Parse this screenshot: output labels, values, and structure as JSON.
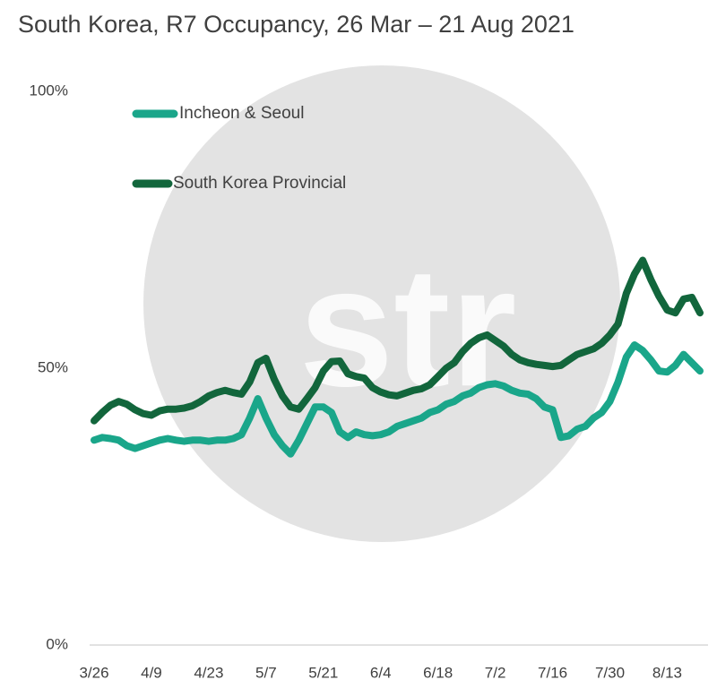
{
  "chart_data": {
    "type": "line",
    "title": "South Korea, R7 Occupancy, 26 Mar – 21 Aug 2021",
    "watermark": "str",
    "categories": [
      "3/26",
      null,
      null,
      null,
      null,
      null,
      null,
      "4/9",
      null,
      null,
      null,
      null,
      null,
      null,
      "4/23",
      null,
      null,
      null,
      null,
      null,
      null,
      "5/7",
      null,
      null,
      null,
      null,
      null,
      null,
      "5/21",
      null,
      null,
      null,
      null,
      null,
      null,
      "6/4",
      null,
      null,
      null,
      null,
      null,
      null,
      "6/18",
      null,
      null,
      null,
      null,
      null,
      null,
      "7/2",
      null,
      null,
      null,
      null,
      null,
      null,
      "7/16",
      null,
      null,
      null,
      null,
      null,
      null,
      "7/30",
      null,
      null,
      null,
      null,
      null,
      null,
      "8/13",
      null,
      null,
      null,
      null
    ],
    "series": [
      {
        "name": "Incheon & Seoul",
        "color": "#1aa68a",
        "values": [
          37,
          37.5,
          37.3,
          37,
          36,
          35.5,
          36,
          36.5,
          37,
          37.3,
          37,
          36.8,
          37,
          37,
          36.8,
          37,
          37,
          37.3,
          38,
          41,
          44.5,
          41,
          38,
          36,
          34.5,
          37,
          40,
          43,
          43,
          42,
          38.5,
          37.5,
          38.5,
          38,
          37.8,
          38,
          38.5,
          39.5,
          40,
          40.5,
          41,
          42,
          42.5,
          43.5,
          44,
          45,
          45.5,
          46.5,
          47,
          47.2,
          46.8,
          46,
          45.5,
          45.3,
          44.5,
          43,
          42.5,
          37.5,
          37.8,
          39,
          39.5,
          41,
          42,
          44,
          47.5,
          52,
          54.2,
          53.2,
          51.5,
          49.5,
          49.3,
          50.5,
          52.5,
          51,
          49.5
        ]
      },
      {
        "name": "South Korea Provincial",
        "color": "#12663c",
        "values": [
          40.5,
          42,
          43.3,
          44,
          43.5,
          42.5,
          41.8,
          41.5,
          42.3,
          42.6,
          42.6,
          42.8,
          43.2,
          44,
          45,
          45.6,
          46,
          45.6,
          45.3,
          47.5,
          51,
          51.8,
          48,
          45,
          43,
          42.6,
          44.5,
          46.5,
          49.5,
          51.2,
          51.3,
          49,
          48.5,
          48.2,
          46.5,
          45.7,
          45.2,
          45,
          45.5,
          46,
          46.3,
          47,
          48.5,
          50,
          51,
          53,
          54.5,
          55.5,
          56,
          55,
          54,
          52.5,
          51.5,
          51,
          50.7,
          50.5,
          50.3,
          50.5,
          51.5,
          52.5,
          53,
          53.5,
          54.5,
          56,
          58,
          63.5,
          67,
          69.5,
          66,
          63,
          60.5,
          60,
          62.5,
          62.8,
          60
        ]
      }
    ],
    "ylim": [
      0,
      100
    ],
    "yticks": [
      {
        "value": 0,
        "label": "0%"
      },
      {
        "value": 50,
        "label": "50%"
      },
      {
        "value": 100,
        "label": "100%"
      }
    ],
    "grid": false
  }
}
